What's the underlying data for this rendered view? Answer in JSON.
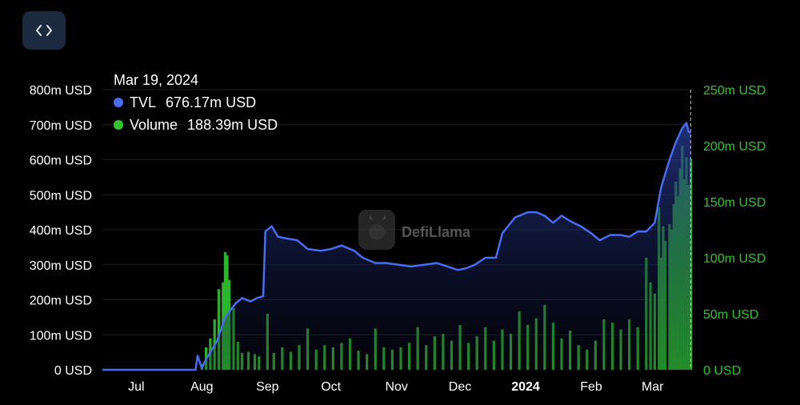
{
  "tooltip": {
    "date": "Mar 19, 2024",
    "series": [
      {
        "name": "TVL",
        "value": "676.17m USD",
        "color": "#4a6cf0"
      },
      {
        "name": "Volume",
        "value": "188.39m USD",
        "color": "#2fc52f"
      }
    ]
  },
  "watermark": {
    "text": "DefiLlama"
  },
  "embed_button": {
    "icon": "code-icon"
  },
  "chart_data": {
    "type": "area",
    "x_labels": [
      "Jul",
      "Aug",
      "Sep",
      "Oct",
      "Nov",
      "Dec",
      "2024",
      "Feb",
      "Mar"
    ],
    "y_left_ticks": [
      "0 USD",
      "100m USD",
      "200m USD",
      "300m USD",
      "400m USD",
      "500m USD",
      "600m USD",
      "700m USD",
      "800m USD"
    ],
    "y_right_ticks": [
      "0 USD",
      "50m USD",
      "100m USD",
      "150m USD",
      "200m USD",
      "250m USD"
    ],
    "y_left_range": [
      0,
      800
    ],
    "y_right_range": [
      0,
      250
    ],
    "x_range": [
      "2023-06-15",
      "2024-03-20"
    ],
    "units": "millions USD",
    "grid": true,
    "series": [
      {
        "name": "TVL",
        "axis": "left",
        "type": "area",
        "color": "#4a6cf0",
        "points": [
          [
            "2023-06-15",
            0
          ],
          [
            "2023-07-15",
            0
          ],
          [
            "2023-07-29",
            0
          ],
          [
            "2023-07-30",
            40
          ],
          [
            "2023-08-01",
            5
          ],
          [
            "2023-08-03",
            30
          ],
          [
            "2023-08-08",
            80
          ],
          [
            "2023-08-12",
            150
          ],
          [
            "2023-08-17",
            190
          ],
          [
            "2023-08-20",
            205
          ],
          [
            "2023-08-24",
            195
          ],
          [
            "2023-08-27",
            205
          ],
          [
            "2023-08-30",
            210
          ],
          [
            "2023-08-31",
            395
          ],
          [
            "2023-09-03",
            410
          ],
          [
            "2023-09-06",
            380
          ],
          [
            "2023-09-10",
            375
          ],
          [
            "2023-09-15",
            370
          ],
          [
            "2023-09-20",
            345
          ],
          [
            "2023-09-26",
            340
          ],
          [
            "2023-10-01",
            345
          ],
          [
            "2023-10-06",
            355
          ],
          [
            "2023-10-12",
            340
          ],
          [
            "2023-10-16",
            320
          ],
          [
            "2023-10-22",
            305
          ],
          [
            "2023-10-27",
            305
          ],
          [
            "2023-11-02",
            300
          ],
          [
            "2023-11-08",
            295
          ],
          [
            "2023-11-14",
            300
          ],
          [
            "2023-11-20",
            305
          ],
          [
            "2023-11-25",
            295
          ],
          [
            "2023-11-30",
            285
          ],
          [
            "2023-12-04",
            290
          ],
          [
            "2023-12-08",
            300
          ],
          [
            "2023-12-13",
            320
          ],
          [
            "2023-12-18",
            320
          ],
          [
            "2023-12-21",
            390
          ],
          [
            "2023-12-27",
            435
          ],
          [
            "2024-01-02",
            450
          ],
          [
            "2024-01-06",
            450
          ],
          [
            "2024-01-10",
            440
          ],
          [
            "2024-01-14",
            420
          ],
          [
            "2024-01-18",
            440
          ],
          [
            "2024-01-22",
            425
          ],
          [
            "2024-01-27",
            410
          ],
          [
            "2024-02-01",
            390
          ],
          [
            "2024-02-05",
            370
          ],
          [
            "2024-02-10",
            385
          ],
          [
            "2024-02-15",
            385
          ],
          [
            "2024-02-19",
            380
          ],
          [
            "2024-02-23",
            395
          ],
          [
            "2024-02-27",
            395
          ],
          [
            "2024-03-02",
            420
          ],
          [
            "2024-03-05",
            520
          ],
          [
            "2024-03-09",
            600
          ],
          [
            "2024-03-12",
            650
          ],
          [
            "2024-03-15",
            690
          ],
          [
            "2024-03-17",
            705
          ],
          [
            "2024-03-18",
            680
          ],
          [
            "2024-03-19",
            676
          ]
        ]
      },
      {
        "name": "Volume",
        "axis": "right",
        "type": "bar",
        "color": "#2fc52f",
        "bars": [
          [
            "2023-08-01",
            5
          ],
          [
            "2023-08-03",
            20
          ],
          [
            "2023-08-05",
            28
          ],
          [
            "2023-08-07",
            45
          ],
          [
            "2023-08-09",
            72
          ],
          [
            "2023-08-11",
            78
          ],
          [
            "2023-08-12",
            105
          ],
          [
            "2023-08-13",
            102
          ],
          [
            "2023-08-14",
            80
          ],
          [
            "2023-08-16",
            55
          ],
          [
            "2023-08-18",
            25
          ],
          [
            "2023-08-20",
            15
          ],
          [
            "2023-08-23",
            16
          ],
          [
            "2023-08-26",
            14
          ],
          [
            "2023-08-28",
            12
          ],
          [
            "2023-09-01",
            50
          ],
          [
            "2023-09-04",
            15
          ],
          [
            "2023-09-08",
            20
          ],
          [
            "2023-09-12",
            16
          ],
          [
            "2023-09-16",
            22
          ],
          [
            "2023-09-20",
            37
          ],
          [
            "2023-09-24",
            18
          ],
          [
            "2023-09-28",
            22
          ],
          [
            "2023-10-02",
            20
          ],
          [
            "2023-10-06",
            24
          ],
          [
            "2023-10-10",
            28
          ],
          [
            "2023-10-14",
            17
          ],
          [
            "2023-10-18",
            14
          ],
          [
            "2023-10-22",
            37
          ],
          [
            "2023-10-26",
            20
          ],
          [
            "2023-10-30",
            18
          ],
          [
            "2023-11-03",
            20
          ],
          [
            "2023-11-07",
            24
          ],
          [
            "2023-11-11",
            38
          ],
          [
            "2023-11-15",
            22
          ],
          [
            "2023-11-19",
            30
          ],
          [
            "2023-11-23",
            32
          ],
          [
            "2023-11-27",
            26
          ],
          [
            "2023-12-01",
            40
          ],
          [
            "2023-12-05",
            24
          ],
          [
            "2023-12-09",
            30
          ],
          [
            "2023-12-13",
            38
          ],
          [
            "2023-12-17",
            26
          ],
          [
            "2023-12-21",
            36
          ],
          [
            "2023-12-25",
            32
          ],
          [
            "2023-12-29",
            52
          ],
          [
            "2024-01-02",
            40
          ],
          [
            "2024-01-06",
            46
          ],
          [
            "2024-01-10",
            58
          ],
          [
            "2024-01-14",
            42
          ],
          [
            "2024-01-18",
            28
          ],
          [
            "2024-01-22",
            35
          ],
          [
            "2024-01-26",
            22
          ],
          [
            "2024-01-30",
            18
          ],
          [
            "2024-02-03",
            26
          ],
          [
            "2024-02-07",
            45
          ],
          [
            "2024-02-11",
            42
          ],
          [
            "2024-02-15",
            36
          ],
          [
            "2024-02-19",
            45
          ],
          [
            "2024-02-23",
            38
          ],
          [
            "2024-02-27",
            100
          ],
          [
            "2024-02-29",
            78
          ],
          [
            "2024-03-02",
            68
          ],
          [
            "2024-03-04",
            145
          ],
          [
            "2024-03-05",
            100
          ],
          [
            "2024-03-06",
            128
          ],
          [
            "2024-03-07",
            115
          ],
          [
            "2024-03-09",
            130
          ],
          [
            "2024-03-10",
            125
          ],
          [
            "2024-03-11",
            148
          ],
          [
            "2024-03-12",
            168
          ],
          [
            "2024-03-13",
            155
          ],
          [
            "2024-03-14",
            180
          ],
          [
            "2024-03-15",
            200
          ],
          [
            "2024-03-16",
            170
          ],
          [
            "2024-03-17",
            190
          ],
          [
            "2024-03-18",
            165
          ],
          [
            "2024-03-19",
            188
          ]
        ]
      }
    ]
  }
}
